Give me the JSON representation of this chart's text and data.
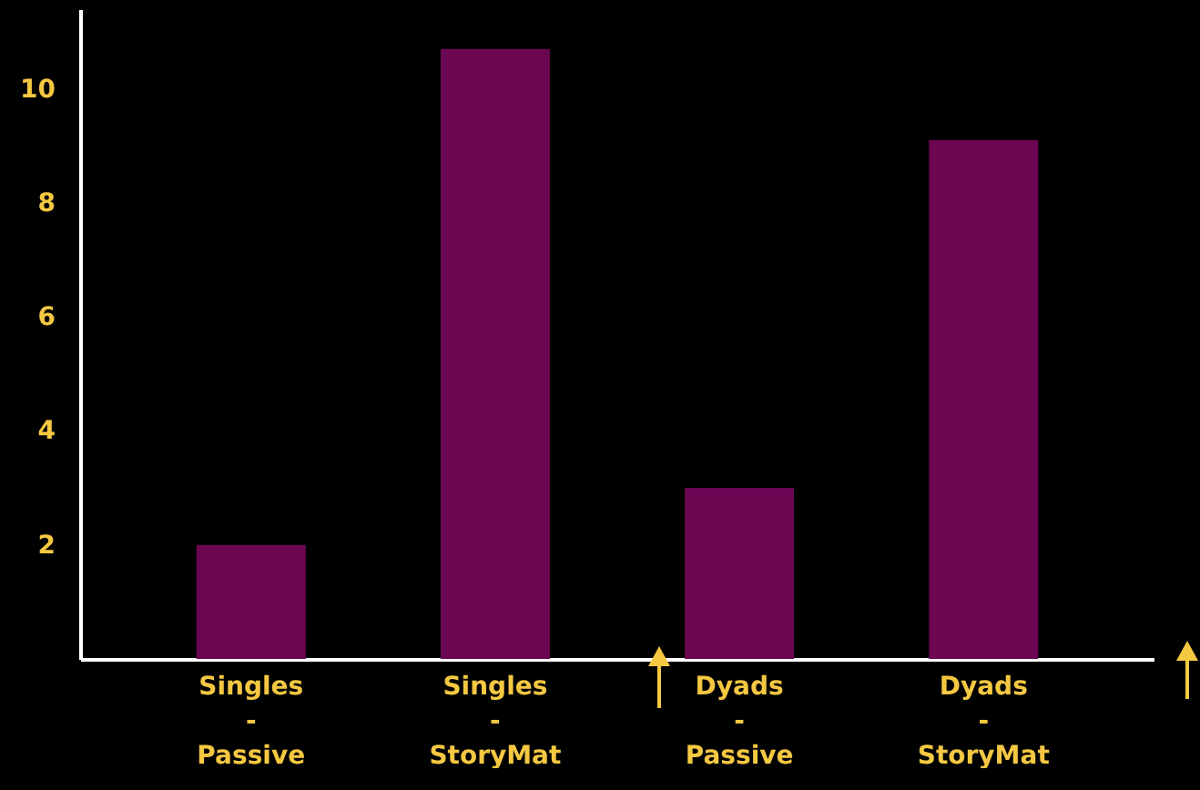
{
  "chart_data": {
    "type": "bar",
    "categories": [
      "Singles\n-\nPassive",
      "Singles\n-\nStoryMat",
      "Dyads\n-\nPassive",
      "Dyads\n-\nStoryMat"
    ],
    "values": [
      2,
      10.7,
      3,
      9.1
    ],
    "color": "#6a0652",
    "ylim": [
      0,
      11.4
    ],
    "yticks": [
      2,
      4,
      6,
      8,
      10
    ],
    "grid": false
  }
}
